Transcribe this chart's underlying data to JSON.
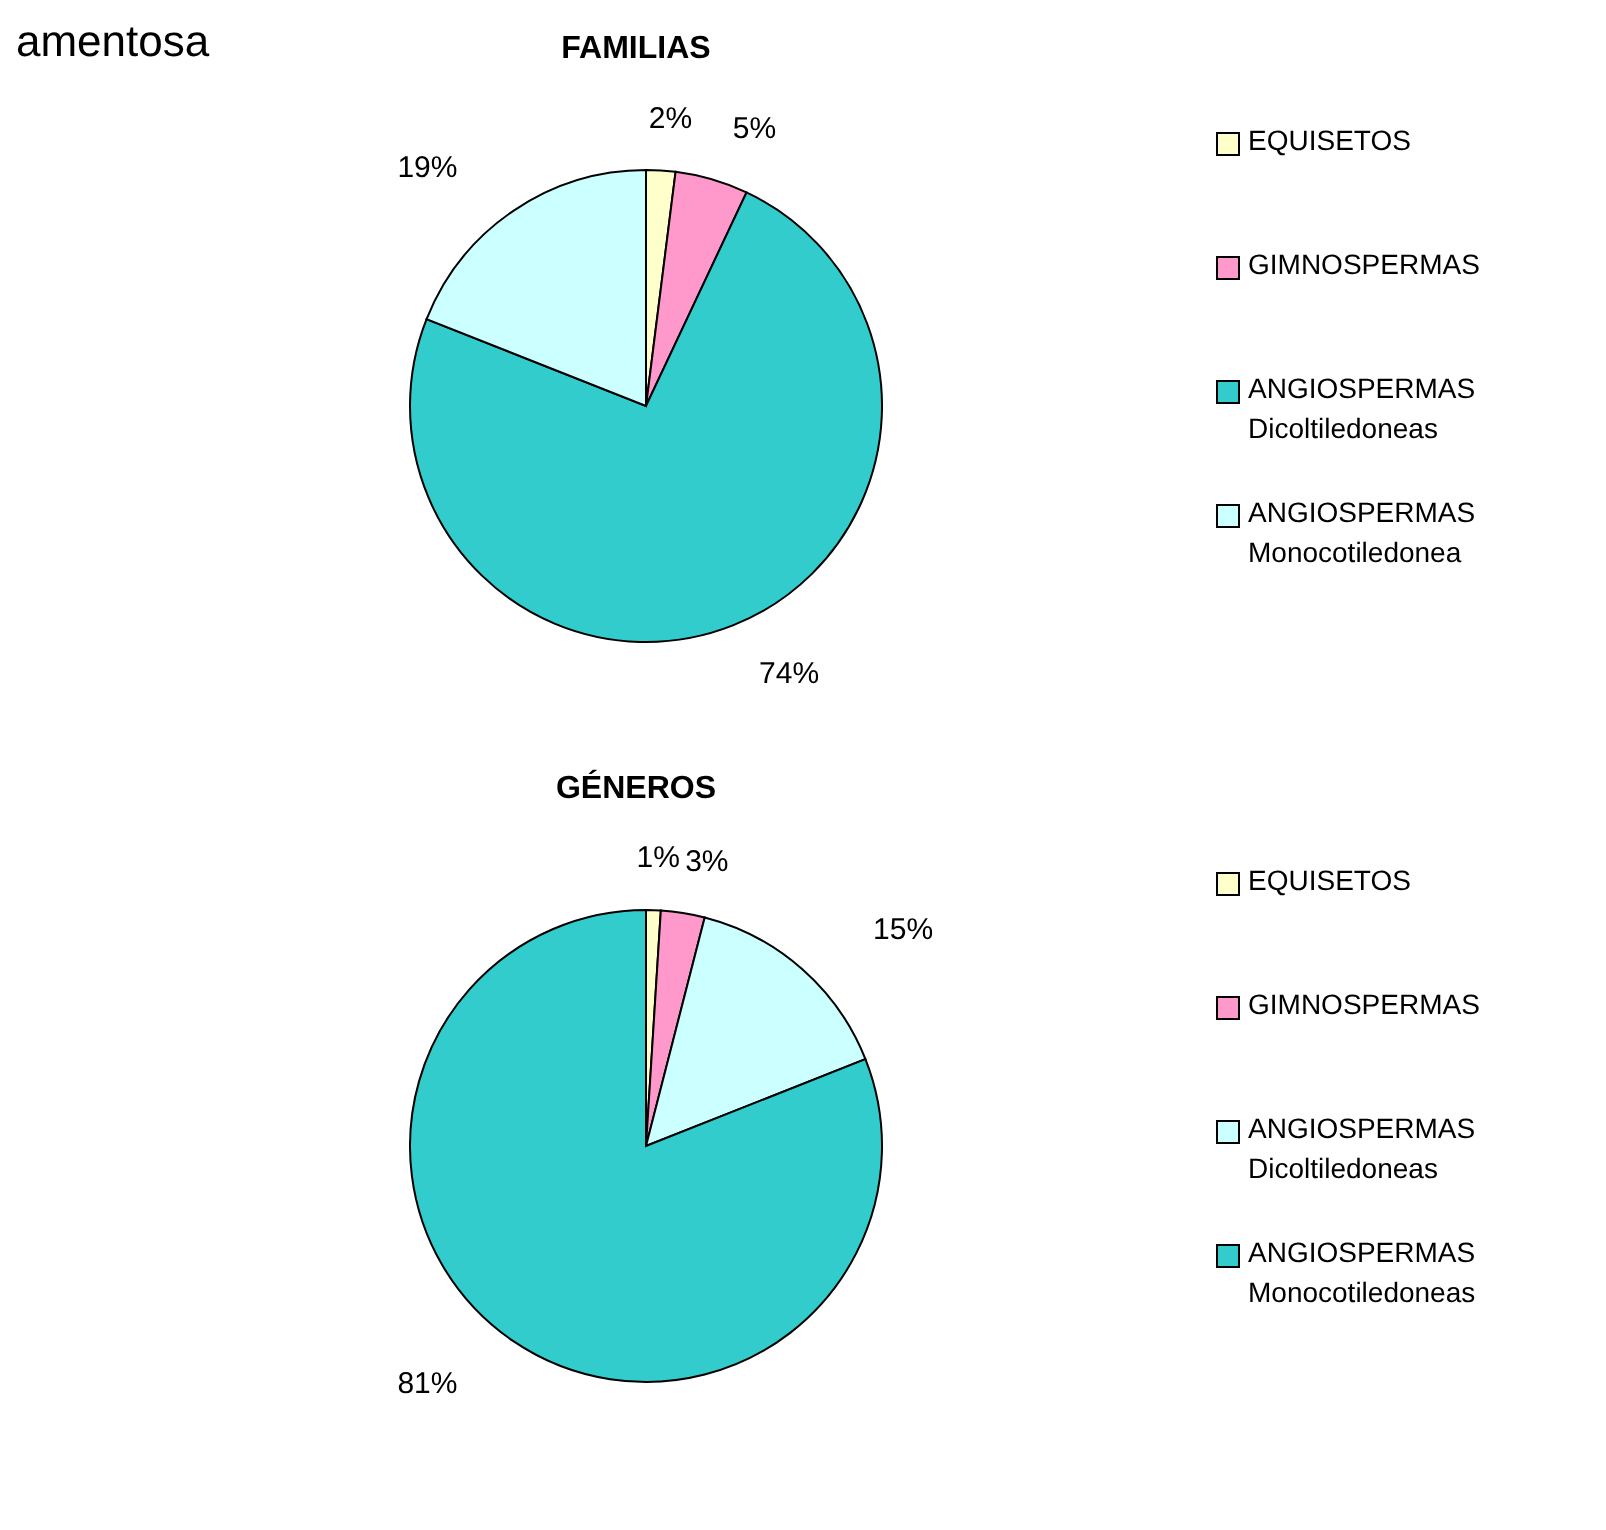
{
  "chart_data": [
    {
      "type": "pie",
      "title": "FAMILIAS",
      "annotations": [
        "amentosa"
      ],
      "categories": [
        "EQUISETOS",
        "GIMNOSPERMAS",
        "ANGIOSPERMAS\nDicoltiledoneas",
        "ANGIOSPERMAS\nMonocotiledonea"
      ],
      "values": [
        2,
        5,
        74,
        19
      ],
      "value_labels": [
        "2%",
        "5%",
        "74%",
        "19%"
      ],
      "colors": [
        "#ffffcc",
        "#ff99cc",
        "#33cccc",
        "#ccffff"
      ],
      "legend": "right"
    },
    {
      "type": "pie",
      "title": "GÉNEROS",
      "categories": [
        "EQUISETOS",
        "GIMNOSPERMAS",
        "ANGIOSPERMAS\nDicoltiledoneas",
        "ANGIOSPERMAS\nMonocotiledoneas"
      ],
      "values": [
        1,
        3,
        15,
        81
      ],
      "value_labels": [
        "1%",
        "3%",
        "15%",
        "81%"
      ],
      "colors": [
        "#ffffcc",
        "#ff99cc",
        "#ccffff",
        "#33cccc"
      ],
      "legend": "right"
    }
  ]
}
